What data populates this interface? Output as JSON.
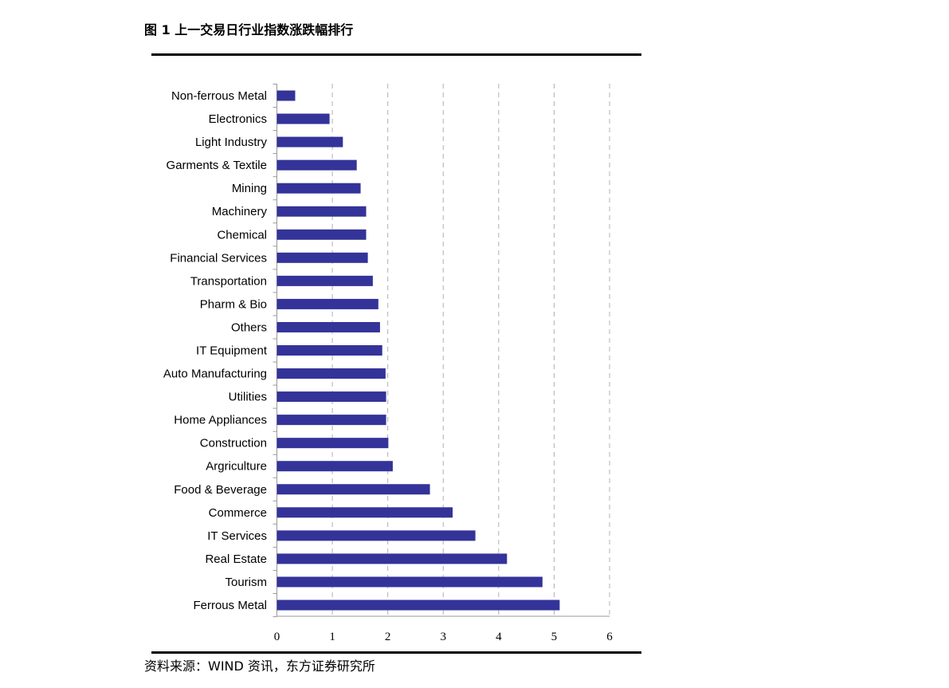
{
  "title": "图 1  上一交易日行业指数涨跌幅排行",
  "source": "资料来源：WIND 资讯，东方证券研究所",
  "colors": {
    "bar": "#333399",
    "grid": "#b0b0b0"
  },
  "chart_data": {
    "type": "bar",
    "orientation": "horizontal",
    "categories": [
      "Non-ferrous Metal",
      "Electronics",
      "Light Industry",
      "Garments & Textile",
      "Mining",
      "Machinery",
      "Chemical",
      "Financial Services",
      "Transportation",
      "Pharm & Bio",
      "Others",
      "IT Equipment",
      "Auto Manufacturing",
      "Utilities",
      "Home Appliances",
      "Construction",
      "Argriculture",
      "Food & Beverage",
      "Commerce",
      "IT Services",
      "Real Estate",
      "Tourism",
      "Ferrous Metal"
    ],
    "values": [
      0.33,
      0.95,
      1.19,
      1.44,
      1.51,
      1.61,
      1.61,
      1.64,
      1.73,
      1.83,
      1.86,
      1.9,
      1.96,
      1.97,
      1.97,
      2.01,
      2.09,
      2.76,
      3.17,
      3.58,
      4.15,
      4.79,
      5.1
    ],
    "xlim": [
      0,
      6
    ],
    "xticks": [
      "0",
      "1",
      "2",
      "3",
      "4",
      "5",
      "6"
    ],
    "grid": "vertical dashed",
    "xlabel": "",
    "ylabel": ""
  }
}
